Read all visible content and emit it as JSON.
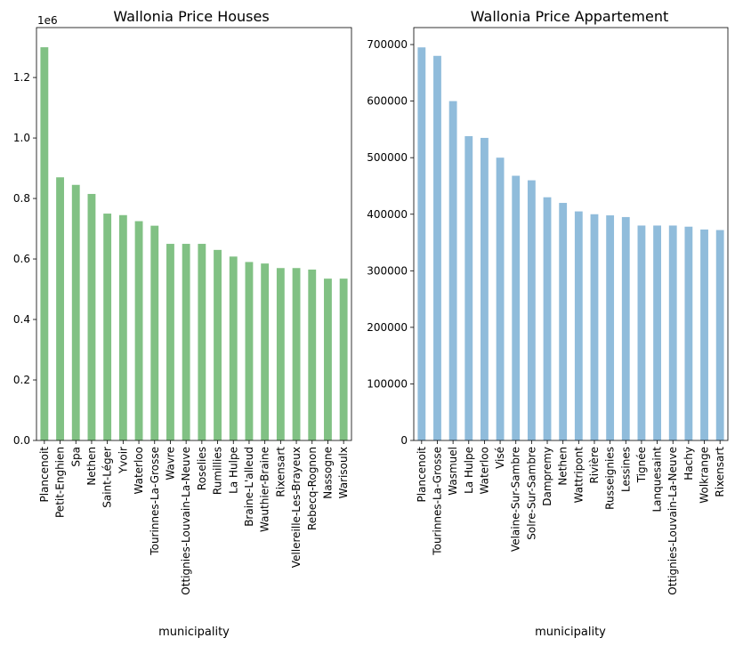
{
  "chart_data": [
    {
      "type": "bar",
      "title": "Wallonia  Price Houses",
      "xlabel": "municipality",
      "ylabel": "",
      "offset_label": "1e6",
      "color": "#81c184",
      "ylim": [
        0,
        1365000
      ],
      "yticks": [
        0,
        200000,
        400000,
        600000,
        800000,
        1000000,
        1200000
      ],
      "ytick_labels": [
        "0.0",
        "0.2",
        "0.4",
        "0.6",
        "0.8",
        "1.0",
        "1.2"
      ],
      "categories": [
        "Plancenoit",
        "Petit-Enghien",
        "Spa",
        "Nethen",
        "Saint-Léger",
        "Yvoir",
        "Waterloo",
        "Tourinnes-La-Grosse",
        "Wavre",
        "Ottignies-Louvain-La-Neuve",
        "Roselies",
        "Rumillies",
        "La Hulpe",
        "Braine-L'alleud",
        "Wauthier-Braine",
        "Rixensart",
        "Vellereille-Les-Brayeux",
        "Rebecq-Rognon",
        "Nassogne",
        "Warisoulx"
      ],
      "values": [
        1300000,
        870000,
        845000,
        815000,
        750000,
        745000,
        725000,
        710000,
        650000,
        650000,
        650000,
        630000,
        608000,
        590000,
        585000,
        570000,
        570000,
        565000,
        535000,
        535000
      ]
    },
    {
      "type": "bar",
      "title": "Wallonia Price Appartement",
      "xlabel": "municipality",
      "ylabel": "",
      "color": "#90bcdb",
      "ylim": [
        0,
        730000
      ],
      "yticks": [
        0,
        100000,
        200000,
        300000,
        400000,
        500000,
        600000,
        700000
      ],
      "ytick_labels": [
        "0",
        "100000",
        "200000",
        "300000",
        "400000",
        "500000",
        "600000",
        "700000"
      ],
      "categories": [
        "Plancenoit",
        "Tourinnes-La-Grosse",
        "Wasmuel",
        "La Hulpe",
        "Waterloo",
        "Visé",
        "Velaine-Sur-Sambre",
        "Solre-Sur-Sambre",
        "Dampremy",
        "Nethen",
        "Wattripont",
        "Rivière",
        "Russeignies",
        "Lessines",
        "Tignée",
        "Lanquesaint",
        "Ottignies-Louvain-La-Neuve",
        "Hachy",
        "Wolkrange",
        "Rixensart"
      ],
      "values": [
        695000,
        680000,
        600000,
        538000,
        535000,
        500000,
        468000,
        460000,
        430000,
        420000,
        405000,
        400000,
        398000,
        395000,
        380000,
        380000,
        380000,
        378000,
        373000,
        372000
      ]
    }
  ]
}
